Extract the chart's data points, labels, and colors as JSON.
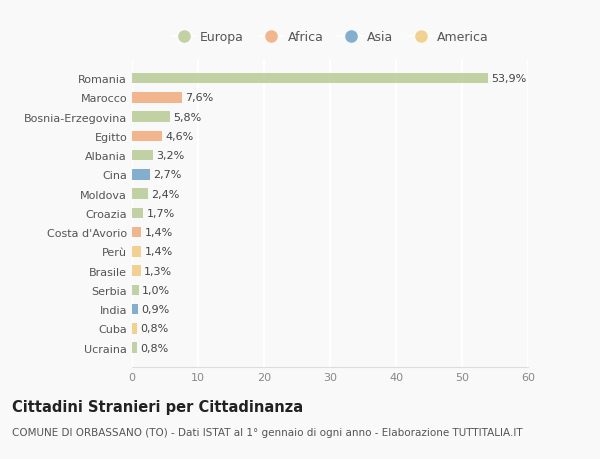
{
  "categories": [
    "Ucraina",
    "Cuba",
    "India",
    "Serbia",
    "Brasile",
    "Perù",
    "Costa d'Avorio",
    "Croazia",
    "Moldova",
    "Cina",
    "Albania",
    "Egitto",
    "Bosnia-Erzegovina",
    "Marocco",
    "Romania"
  ],
  "values": [
    0.8,
    0.8,
    0.9,
    1.0,
    1.3,
    1.4,
    1.4,
    1.7,
    2.4,
    2.7,
    3.2,
    4.6,
    5.8,
    7.6,
    53.9
  ],
  "labels": [
    "0,8%",
    "0,8%",
    "0,9%",
    "1,0%",
    "1,3%",
    "1,4%",
    "1,4%",
    "1,7%",
    "2,4%",
    "2,7%",
    "3,2%",
    "4,6%",
    "5,8%",
    "7,6%",
    "53,9%"
  ],
  "bar_colors": [
    "#b5c990",
    "#f0c97a",
    "#6b9ec5",
    "#b5c990",
    "#f0c97a",
    "#f0c97a",
    "#f0a875",
    "#b5c990",
    "#b5c990",
    "#6b9ec5",
    "#b5c990",
    "#f0a875",
    "#b5c990",
    "#f0a875",
    "#b5c990"
  ],
  "legend_labels": [
    "Europa",
    "Africa",
    "Asia",
    "America"
  ],
  "legend_colors": [
    "#b5c990",
    "#f0a875",
    "#6b9ec5",
    "#f0c97a"
  ],
  "title": "Cittadini Stranieri per Cittadinanza",
  "subtitle": "COMUNE DI ORBASSANO (TO) - Dati ISTAT al 1° gennaio di ogni anno - Elaborazione TUTTITALIA.IT",
  "xlim": [
    0,
    60
  ],
  "xticks": [
    0,
    10,
    20,
    30,
    40,
    50,
    60
  ],
  "background_color": "#f9f9f9",
  "bar_alpha": 0.82,
  "grid_color": "#ffffff",
  "title_fontsize": 10.5,
  "subtitle_fontsize": 7.5,
  "label_fontsize": 8,
  "tick_fontsize": 8,
  "legend_fontsize": 9
}
